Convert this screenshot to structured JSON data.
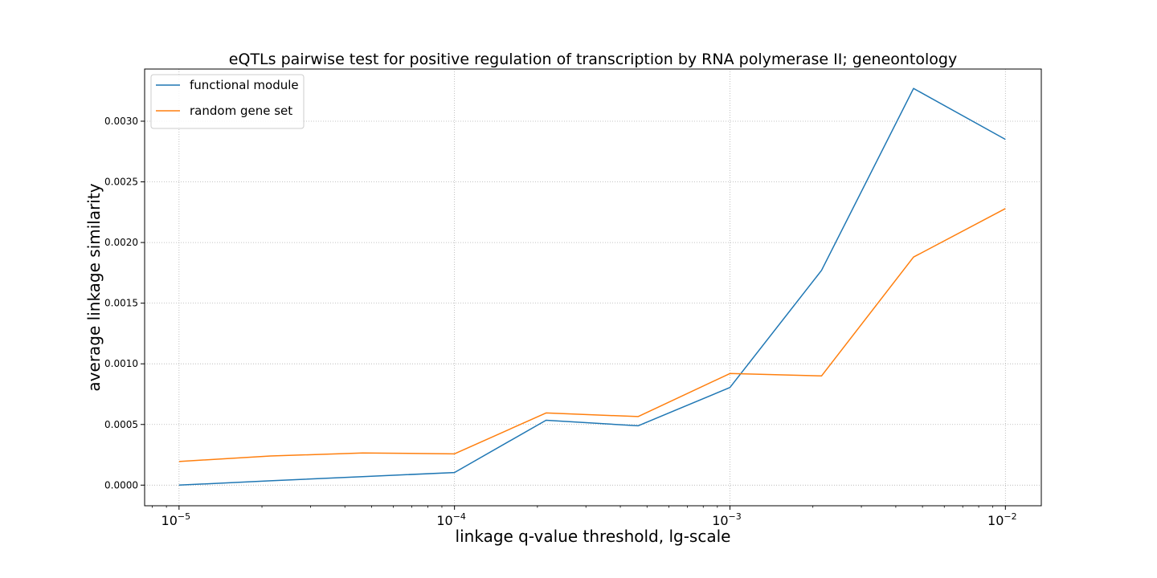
{
  "chart_data": {
    "type": "line",
    "title": "eQTLs pairwise test for positive regulation of transcription by RNA polymerase II; geneontology",
    "xlabel": "linkage q-value threshold, lg-scale",
    "ylabel": "average linkage similarity",
    "xscale": "log",
    "xlim": [
      7.5e-06,
      0.0135
    ],
    "ylim": [
      -0.00017,
      0.00343
    ],
    "x": [
      1e-05,
      2.15e-05,
      4.64e-05,
      0.0001,
      0.000215,
      0.000464,
      0.001,
      0.00215,
      0.00464,
      0.01
    ],
    "xticks": [
      {
        "value": 1e-05,
        "base": "10",
        "exp": "−5"
      },
      {
        "value": 0.0001,
        "base": "10",
        "exp": "−4"
      },
      {
        "value": 0.001,
        "base": "10",
        "exp": "−3"
      },
      {
        "value": 0.01,
        "base": "10",
        "exp": "−2"
      }
    ],
    "yticks": [
      {
        "value": 0.0,
        "label": "0.0000"
      },
      {
        "value": 0.0005,
        "label": "0.0005"
      },
      {
        "value": 0.001,
        "label": "0.0010"
      },
      {
        "value": 0.0015,
        "label": "0.0015"
      },
      {
        "value": 0.002,
        "label": "0.0020"
      },
      {
        "value": 0.0025,
        "label": "0.0025"
      },
      {
        "value": 0.003,
        "label": "0.0030"
      }
    ],
    "grid": true,
    "legend_position": "top-left",
    "series": [
      {
        "name": "functional module",
        "color": "#1f77b4",
        "values": [
          0.0,
          3.6e-05,
          7e-05,
          0.000104,
          0.000535,
          0.000489,
          0.000805,
          0.00177,
          0.00327,
          0.00285
        ]
      },
      {
        "name": "random gene set",
        "color": "#ff7f0e",
        "values": [
          0.000195,
          0.00024,
          0.000265,
          0.000258,
          0.000595,
          0.000565,
          0.00092,
          0.0009,
          0.00188,
          0.00228
        ]
      }
    ]
  }
}
